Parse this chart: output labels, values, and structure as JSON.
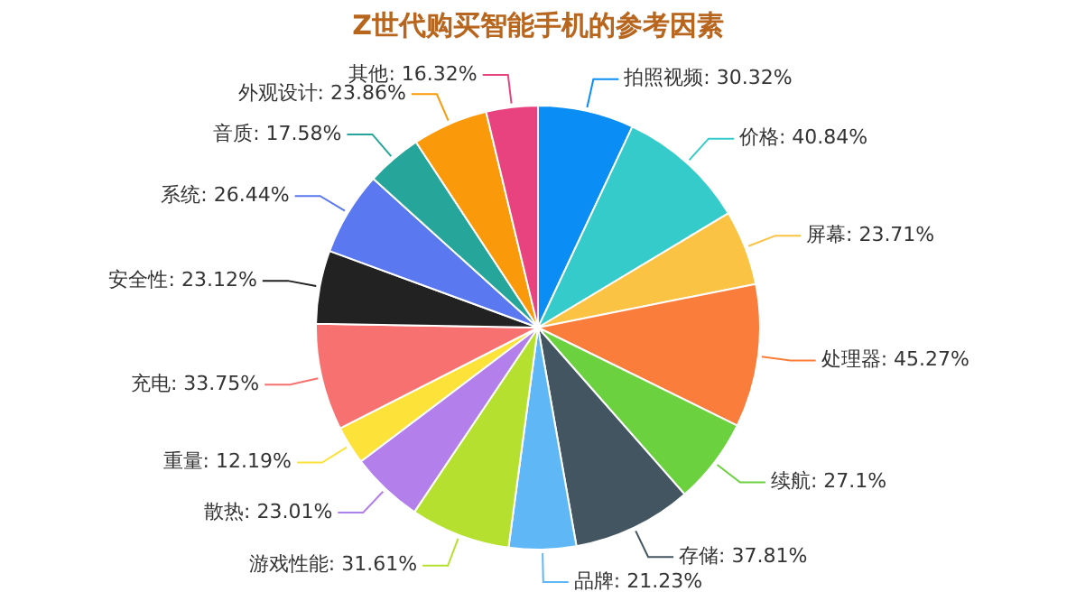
{
  "chart_data": {
    "type": "pie",
    "title": "Z世代购买智能手机的参考因素",
    "categories": [
      "拍照视频",
      "价格",
      "屏幕",
      "处理器",
      "续航",
      "存储",
      "品牌",
      "游戏性能",
      "散热",
      "重量",
      "充电",
      "安全性",
      "系统",
      "音质",
      "外观设计",
      "其他"
    ],
    "values": [
      30.32,
      40.84,
      23.71,
      45.27,
      27.1,
      37.81,
      21.23,
      31.61,
      23.01,
      12.19,
      33.75,
      23.12,
      26.44,
      17.58,
      23.86,
      16.32
    ],
    "value_labels": [
      "30.32%",
      "40.84%",
      "23.71%",
      "45.27%",
      "27.1%",
      "37.81%",
      "21.23%",
      "31.61%",
      "23.01%",
      "12.19%",
      "33.75%",
      "23.12%",
      "26.44%",
      "17.58%",
      "23.86%",
      "16.32%"
    ],
    "colors": [
      "#0a8ef5",
      "#36cbcb",
      "#fbc343",
      "#fa7d3c",
      "#6cd13f",
      "#435560",
      "#5fb8f5",
      "#b5e030",
      "#b37feb",
      "#fde23a",
      "#f87171",
      "#222222",
      "#5a78ef",
      "#26a69a",
      "#fa9a0a",
      "#e8437f"
    ],
    "legend": false
  }
}
